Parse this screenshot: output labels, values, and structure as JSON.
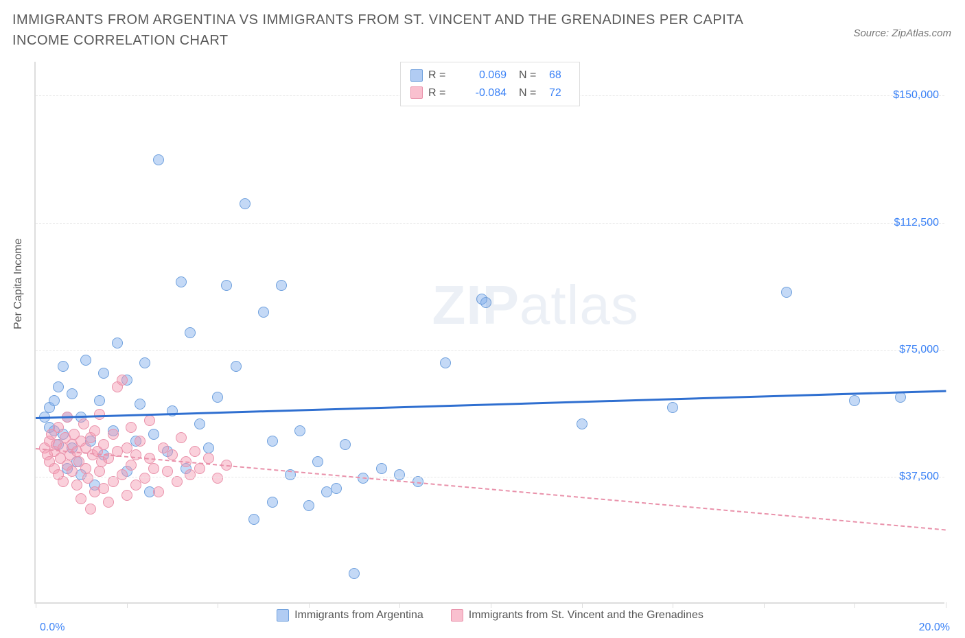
{
  "title": "IMMIGRANTS FROM ARGENTINA VS IMMIGRANTS FROM ST. VINCENT AND THE GRENADINES PER CAPITA INCOME CORRELATION CHART",
  "source": "Source: ZipAtlas.com",
  "watermark_a": "ZIP",
  "watermark_b": "atlas",
  "chart": {
    "type": "scatter",
    "ylabel": "Per Capita Income",
    "xlim": [
      0,
      20.0
    ],
    "ylim": [
      0,
      160000
    ],
    "xtick_min_label": "0.0%",
    "xtick_max_label": "20.0%",
    "yticks": [
      37500,
      75000,
      112500,
      150000
    ],
    "ytick_labels": [
      "$37,500",
      "$75,000",
      "$112,500",
      "$150,000"
    ],
    "grid_color": "#e8e8e8",
    "background_color": "#ffffff",
    "series": [
      {
        "name": "Immigrants from Argentina",
        "color_fill": "rgba(125,170,235,0.45)",
        "color_stroke": "#6fa0dd",
        "trend_color": "#2f6fd0",
        "trend_dash": "solid",
        "R": "0.069",
        "N": "68",
        "trend": {
          "x1": 0,
          "y1": 55000,
          "x2": 20,
          "y2": 63000
        },
        "points": [
          [
            0.2,
            55000
          ],
          [
            0.3,
            52000
          ],
          [
            0.3,
            58000
          ],
          [
            0.4,
            51000
          ],
          [
            0.4,
            60000
          ],
          [
            0.5,
            47000
          ],
          [
            0.5,
            64000
          ],
          [
            0.6,
            50000
          ],
          [
            0.6,
            70000
          ],
          [
            0.7,
            40000
          ],
          [
            0.7,
            55000
          ],
          [
            0.8,
            46000
          ],
          [
            0.8,
            62000
          ],
          [
            0.9,
            42000
          ],
          [
            1.0,
            38000
          ],
          [
            1.0,
            55000
          ],
          [
            1.1,
            72000
          ],
          [
            1.2,
            48000
          ],
          [
            1.3,
            35000
          ],
          [
            1.4,
            60000
          ],
          [
            1.5,
            68000
          ],
          [
            1.5,
            44000
          ],
          [
            1.7,
            51000
          ],
          [
            1.8,
            77000
          ],
          [
            2.0,
            39000
          ],
          [
            2.0,
            66000
          ],
          [
            2.2,
            48000
          ],
          [
            2.3,
            59000
          ],
          [
            2.4,
            71000
          ],
          [
            2.5,
            33000
          ],
          [
            2.6,
            50000
          ],
          [
            2.7,
            131000
          ],
          [
            2.9,
            45000
          ],
          [
            3.0,
            57000
          ],
          [
            3.2,
            95000
          ],
          [
            3.3,
            40000
          ],
          [
            3.4,
            80000
          ],
          [
            3.6,
            53000
          ],
          [
            3.8,
            46000
          ],
          [
            4.0,
            61000
          ],
          [
            4.2,
            94000
          ],
          [
            4.4,
            70000
          ],
          [
            4.6,
            118000
          ],
          [
            4.8,
            25000
          ],
          [
            5.0,
            86000
          ],
          [
            5.2,
            30000
          ],
          [
            5.2,
            48000
          ],
          [
            5.4,
            94000
          ],
          [
            5.6,
            38000
          ],
          [
            5.8,
            51000
          ],
          [
            6.0,
            29000
          ],
          [
            6.2,
            42000
          ],
          [
            6.4,
            33000
          ],
          [
            6.6,
            34000
          ],
          [
            6.8,
            47000
          ],
          [
            7.0,
            9000
          ],
          [
            7.2,
            37000
          ],
          [
            7.6,
            40000
          ],
          [
            8.0,
            38000
          ],
          [
            8.4,
            36000
          ],
          [
            9.0,
            71000
          ],
          [
            9.8,
            90000
          ],
          [
            9.9,
            89000
          ],
          [
            12.0,
            53000
          ],
          [
            14.0,
            58000
          ],
          [
            16.5,
            92000
          ],
          [
            18.0,
            60000
          ],
          [
            19.0,
            61000
          ]
        ]
      },
      {
        "name": "Immigrants from St. Vincent and the Grenadines",
        "color_fill": "rgba(245,150,175,0.45)",
        "color_stroke": "#e991aa",
        "trend_color": "#e991aa",
        "trend_dash": "dashed",
        "R": "-0.084",
        "N": "72",
        "trend": {
          "x1": 0,
          "y1": 46000,
          "x2": 20,
          "y2": 22000
        },
        "points": [
          [
            0.2,
            46000
          ],
          [
            0.25,
            44000
          ],
          [
            0.3,
            48000
          ],
          [
            0.3,
            42000
          ],
          [
            0.35,
            50000
          ],
          [
            0.4,
            40000
          ],
          [
            0.4,
            45000
          ],
          [
            0.45,
            47000
          ],
          [
            0.5,
            38000
          ],
          [
            0.5,
            52000
          ],
          [
            0.55,
            43000
          ],
          [
            0.6,
            46000
          ],
          [
            0.6,
            36000
          ],
          [
            0.65,
            49000
          ],
          [
            0.7,
            41000
          ],
          [
            0.7,
            55000
          ],
          [
            0.75,
            44000
          ],
          [
            0.8,
            39000
          ],
          [
            0.8,
            47000
          ],
          [
            0.85,
            50000
          ],
          [
            0.9,
            35000
          ],
          [
            0.9,
            45000
          ],
          [
            0.95,
            42000
          ],
          [
            1.0,
            48000
          ],
          [
            1.0,
            31000
          ],
          [
            1.05,
            53000
          ],
          [
            1.1,
            40000
          ],
          [
            1.1,
            46000
          ],
          [
            1.15,
            37000
          ],
          [
            1.2,
            49000
          ],
          [
            1.2,
            28000
          ],
          [
            1.25,
            44000
          ],
          [
            1.3,
            51000
          ],
          [
            1.3,
            33000
          ],
          [
            1.35,
            45000
          ],
          [
            1.4,
            39000
          ],
          [
            1.4,
            56000
          ],
          [
            1.45,
            42000
          ],
          [
            1.5,
            34000
          ],
          [
            1.5,
            47000
          ],
          [
            1.6,
            30000
          ],
          [
            1.6,
            43000
          ],
          [
            1.7,
            50000
          ],
          [
            1.7,
            36000
          ],
          [
            1.8,
            45000
          ],
          [
            1.8,
            64000
          ],
          [
            1.9,
            38000
          ],
          [
            1.9,
            66000
          ],
          [
            2.0,
            32000
          ],
          [
            2.0,
            46000
          ],
          [
            2.1,
            41000
          ],
          [
            2.1,
            52000
          ],
          [
            2.2,
            35000
          ],
          [
            2.2,
            44000
          ],
          [
            2.3,
            48000
          ],
          [
            2.4,
            37000
          ],
          [
            2.5,
            43000
          ],
          [
            2.5,
            54000
          ],
          [
            2.6,
            40000
          ],
          [
            2.7,
            33000
          ],
          [
            2.8,
            46000
          ],
          [
            2.9,
            39000
          ],
          [
            3.0,
            44000
          ],
          [
            3.1,
            36000
          ],
          [
            3.2,
            49000
          ],
          [
            3.3,
            42000
          ],
          [
            3.4,
            38000
          ],
          [
            3.5,
            45000
          ],
          [
            3.6,
            40000
          ],
          [
            3.8,
            43000
          ],
          [
            4.0,
            37000
          ],
          [
            4.2,
            41000
          ]
        ]
      }
    ],
    "legend_sq_a": "rgba(125,170,235,0.6)",
    "legend_sq_a_border": "#6fa0dd",
    "legend_sq_b": "rgba(245,150,175,0.6)",
    "legend_sq_b_border": "#e991aa"
  }
}
